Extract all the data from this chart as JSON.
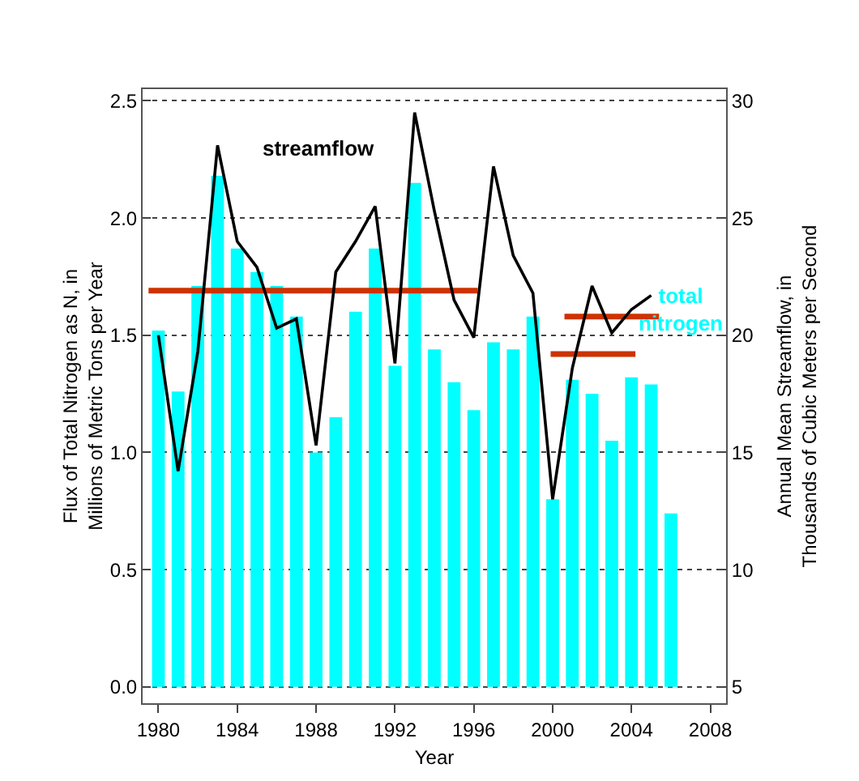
{
  "chart_data": {
    "type": "bar",
    "xlabel": "Year",
    "ylabel": "Flux of Total Nitrogen as N, in\nMillions of Metric Tons per Year",
    "y2label": "Annual Mean Streamflow, in\nThousands of Cubic Meters per Second",
    "x": [
      1980,
      1981,
      1982,
      1983,
      1984,
      1985,
      1986,
      1987,
      1988,
      1989,
      1990,
      1991,
      1992,
      1993,
      1994,
      1995,
      1996,
      1997,
      1998,
      1999,
      2000,
      2001,
      2002,
      2003,
      2004,
      2005,
      2006
    ],
    "series": [
      {
        "name": "total nitrogen",
        "color": "#00ffff",
        "values": [
          1.52,
          1.26,
          1.71,
          2.18,
          1.87,
          1.77,
          1.71,
          1.58,
          1.0,
          1.15,
          1.6,
          1.87,
          1.37,
          2.15,
          1.44,
          1.3,
          1.18,
          1.47,
          1.44,
          1.58,
          0.8,
          1.31,
          1.25,
          1.05,
          1.32,
          1.29,
          0.74
        ]
      },
      {
        "name": "streamflow",
        "type": "line",
        "axis": "y2",
        "color": "#000000",
        "x": [
          1980,
          1981,
          1982,
          1983,
          1984,
          1985,
          1986,
          1987,
          1988,
          1989,
          1990,
          1991,
          1992,
          1993,
          1994,
          1995,
          1996,
          1997,
          1998,
          1999,
          2000,
          2001,
          2002,
          2003,
          2004,
          2005
        ],
        "values": [
          20.0,
          14.2,
          19.3,
          28.1,
          24.0,
          22.9,
          20.3,
          20.7,
          15.3,
          22.7,
          24.0,
          25.5,
          18.8,
          29.5,
          25.3,
          21.5,
          19.9,
          27.2,
          23.4,
          21.8,
          13.0,
          18.6,
          22.1,
          20.1,
          21.1,
          21.7
        ]
      },
      {
        "type": "line",
        "color": "#cc3300",
        "x": [
          1979.5,
          1996.2
        ],
        "values": [
          1.69,
          1.69
        ]
      },
      {
        "type": "line",
        "color": "#cc3300",
        "x": [
          2000.6,
          2005.4
        ],
        "values": [
          1.58,
          1.58
        ]
      },
      {
        "type": "line",
        "color": "#cc3300",
        "x": [
          1999.9,
          2004.2
        ],
        "values": [
          1.42,
          1.42
        ]
      }
    ],
    "xlim": [
      1979.2,
      2008.8
    ],
    "xticks": [
      1980,
      1984,
      1988,
      1992,
      1996,
      2000,
      2004,
      2008
    ],
    "ylim": [
      -0.07,
      2.55
    ],
    "yticks": [
      {
        "value": 0,
        "label": "0.0"
      },
      0.5,
      {
        "value": 1,
        "label": "1.0"
      },
      1.5,
      {
        "value": 2,
        "label": "2.0"
      },
      2.5
    ],
    "y2lim": [
      4.3,
      30.5
    ],
    "y2ticks": [
      5,
      10,
      15,
      20,
      25,
      30
    ],
    "grid": "y",
    "marker": "none",
    "line_style": "solid"
  }
}
